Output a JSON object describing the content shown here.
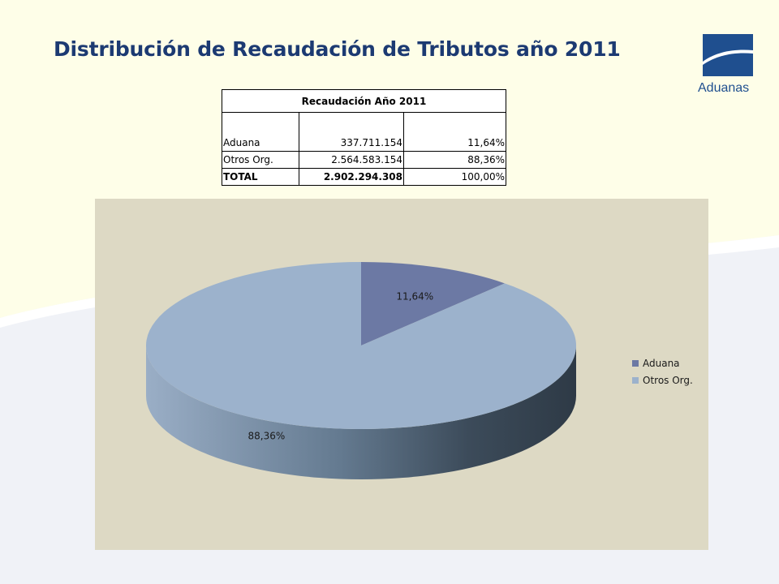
{
  "slide": {
    "title": "Distribución de Recaudación de Tributos año 2011",
    "logo": {
      "icon": "aduanas-logo-icon",
      "text": "Aduanas"
    }
  },
  "table": {
    "header": "Recaudación Año 2011",
    "rows": [
      {
        "label": "Aduana",
        "amount": "337.711.154",
        "percent": "11,64%"
      },
      {
        "label": "Otros Org.",
        "amount": "2.564.583.154",
        "percent": "88,36%"
      }
    ],
    "total": {
      "label": "TOTAL",
      "amount": "2.902.294.308",
      "percent": "100,00%"
    }
  },
  "chart_data": {
    "type": "pie",
    "style": "3d",
    "categories": [
      "Aduana",
      "Otros Org."
    ],
    "values": [
      337711154,
      2564583154
    ],
    "data_labels": [
      "11,64%",
      "88,36%"
    ],
    "colors": [
      "#6c79a4",
      "#9cb2cc"
    ],
    "legend": [
      "Aduana",
      "Otros Org."
    ],
    "legend_position": "right",
    "background": "#ddd9c4"
  }
}
